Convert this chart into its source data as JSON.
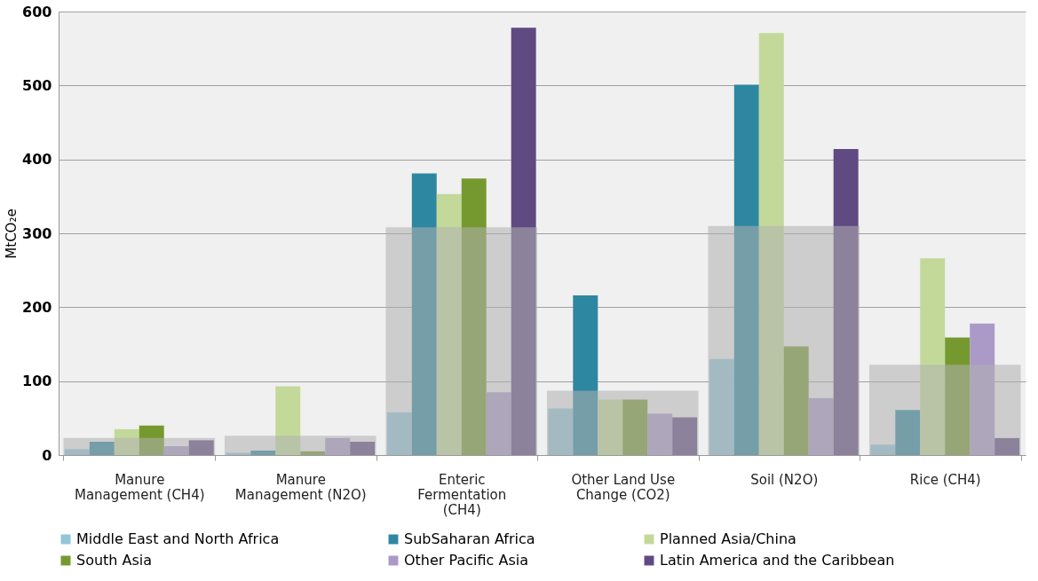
{
  "chart_data": {
    "type": "bar",
    "ylabel": "MtCO₂e",
    "categories": [
      "Manure Management (CH4)",
      "Manure Management (N2O)",
      "Enteric Fermentation (CH4)",
      "Other Land Use Change (CO2)",
      "Soil (N2O)",
      "Rice (CH4)"
    ],
    "series": [
      {
        "name": "Middle East and North Africa",
        "color": "#92c5d8",
        "values": [
          8,
          3,
          58,
          63,
          130,
          14
        ]
      },
      {
        "name": "SubSaharan Africa",
        "color": "#2e87a0",
        "values": [
          18,
          6,
          381,
          216,
          501,
          61
        ]
      },
      {
        "name": "Planned Asia/China",
        "color": "#c3d99a",
        "values": [
          35,
          93,
          353,
          75,
          571,
          266
        ]
      },
      {
        "name": "South Asia",
        "color": "#76992f",
        "values": [
          40,
          5,
          374,
          75,
          147,
          159
        ]
      },
      {
        "name": "Other Pacific Asia",
        "color": "#ab9ac7",
        "values": [
          12,
          23,
          85,
          56,
          77,
          178
        ]
      },
      {
        "name": "Latin America and the Caribbean",
        "color": "#5f4a82",
        "values": [
          20,
          18,
          578,
          51,
          414,
          23
        ]
      },
      {
        "type": "bar",
        "color": "#b0b0b0",
        "values": [
          23,
          26,
          308,
          87,
          310,
          122
        ]
      }
    ],
    "ylim": [
      0,
      600
    ],
    "yticks": [
      0,
      100,
      200,
      300,
      400,
      500,
      600
    ],
    "grid": "y",
    "legend": "bottom"
  }
}
